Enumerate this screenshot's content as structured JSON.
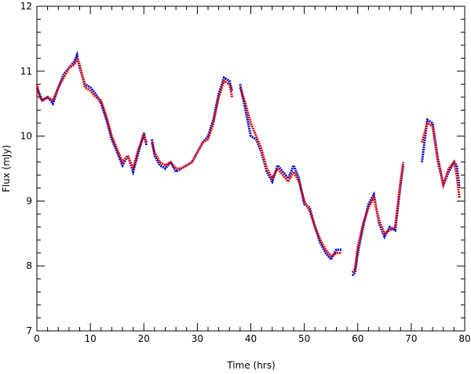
{
  "chart_data": {
    "type": "scatter",
    "xlabel": "Time (hrs)",
    "ylabel": "Flux (mJy)",
    "xlim": [
      0,
      80
    ],
    "ylim": [
      7,
      12
    ],
    "xticks": [
      0,
      10,
      20,
      30,
      40,
      50,
      60,
      70,
      80
    ],
    "yticks": [
      7,
      8,
      9,
      10,
      11,
      12
    ],
    "xminorticks": [
      2,
      4,
      6,
      8,
      12,
      14,
      16,
      18,
      22,
      24,
      26,
      28,
      32,
      34,
      36,
      38,
      42,
      44,
      46,
      48,
      52,
      54,
      56,
      58,
      62,
      64,
      66,
      68,
      72,
      74,
      76,
      78
    ],
    "yminorticks": [
      7.2,
      7.4,
      7.6,
      7.8,
      8.2,
      8.4,
      8.6,
      8.8,
      9.2,
      9.4,
      9.6,
      9.8,
      10.2,
      10.4,
      10.6,
      10.8,
      11.2,
      11.4,
      11.6,
      11.8
    ],
    "x": [
      0,
      0.5,
      1,
      2,
      3,
      4,
      5,
      6,
      7,
      7.5,
      8,
      9,
      10,
      11,
      12,
      13,
      14,
      15,
      16,
      17,
      18,
      19,
      20,
      20.5,
      21,
      21.5,
      22,
      23,
      24,
      25,
      26,
      27,
      28,
      29,
      30,
      31,
      32,
      33,
      34,
      35,
      36,
      36.5,
      37,
      38,
      39,
      40,
      41,
      42,
      43,
      44,
      45,
      46,
      47,
      48,
      49,
      50,
      51,
      52,
      53,
      54,
      55,
      56,
      57,
      58,
      59,
      59.5,
      60,
      61,
      62,
      63,
      64,
      65,
      66,
      67,
      68,
      68.5,
      70,
      72,
      73,
      74,
      75,
      76,
      77,
      78,
      78.5,
      79
    ],
    "series": [
      {
        "color": "#0000cc",
        "values": [
          10.75,
          10.65,
          10.55,
          10.6,
          10.5,
          10.75,
          10.95,
          11.05,
          11.15,
          11.25,
          11.05,
          10.8,
          10.75,
          10.65,
          10.5,
          10.25,
          9.95,
          9.75,
          9.55,
          9.7,
          9.45,
          9.75,
          10.05,
          9.85,
          null,
          9.95,
          9.7,
          9.55,
          9.5,
          9.6,
          9.45,
          9.5,
          9.55,
          9.6,
          9.75,
          9.9,
          10.0,
          10.25,
          10.65,
          10.9,
          10.85,
          10.7,
          null,
          10.8,
          10.4,
          10.0,
          9.95,
          9.75,
          9.45,
          9.3,
          9.55,
          9.45,
          9.35,
          9.55,
          9.35,
          8.95,
          8.9,
          8.6,
          8.35,
          8.2,
          8.1,
          8.25,
          8.25,
          null,
          7.85,
          7.9,
          8.2,
          8.6,
          8.95,
          9.1,
          8.65,
          8.45,
          8.6,
          8.55,
          9.25,
          9.55,
          null,
          9.6,
          10.25,
          10.2,
          9.65,
          9.25,
          9.45,
          9.6,
          9.55,
          9.2
        ]
      },
      {
        "color": "#dd0000",
        "values": [
          10.8,
          10.6,
          10.55,
          10.6,
          10.55,
          10.75,
          10.9,
          11.05,
          11.1,
          11.2,
          11.1,
          10.75,
          10.7,
          10.6,
          10.55,
          10.3,
          10.0,
          9.8,
          9.6,
          9.7,
          9.5,
          9.8,
          10.0,
          9.9,
          null,
          9.9,
          9.75,
          9.6,
          9.55,
          9.6,
          9.5,
          9.5,
          9.55,
          9.6,
          9.75,
          9.9,
          9.95,
          10.2,
          10.6,
          10.85,
          10.8,
          10.6,
          null,
          10.75,
          10.5,
          10.2,
          10.0,
          9.8,
          9.5,
          9.35,
          9.5,
          9.4,
          9.3,
          9.45,
          9.3,
          9.0,
          8.85,
          8.6,
          8.4,
          8.25,
          8.15,
          8.2,
          8.2,
          null,
          7.9,
          7.95,
          8.3,
          8.65,
          8.9,
          9.05,
          8.7,
          8.5,
          8.55,
          8.6,
          9.3,
          9.6,
          null,
          9.9,
          10.2,
          10.15,
          9.6,
          9.25,
          9.5,
          9.6,
          9.4,
          9.05
        ]
      }
    ]
  }
}
